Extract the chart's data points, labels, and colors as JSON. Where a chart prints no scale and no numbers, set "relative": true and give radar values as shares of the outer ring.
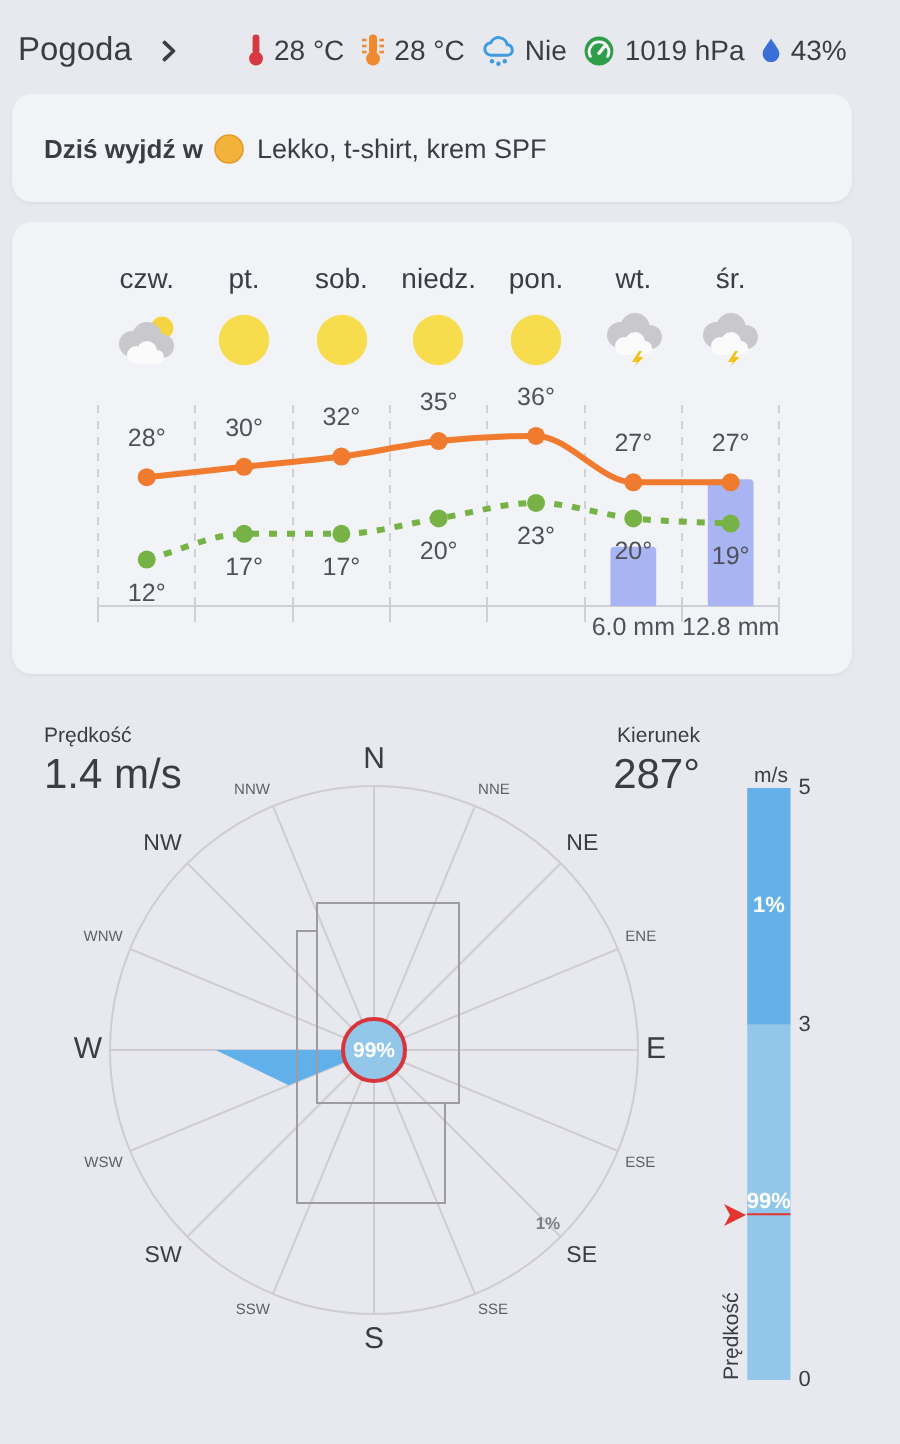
{
  "chart_data": [
    {
      "type": "other",
      "title": "Pogoda",
      "annotations": [
        "28 °C",
        "28 °C",
        "Nie",
        "1019 hPa",
        "43%"
      ]
    },
    {
      "type": "other",
      "title": "Dziś wyjdź w",
      "annotations": [
        "Lekko, t-shirt, krem SPF"
      ]
    },
    {
      "type": "line",
      "categories": [
        "czw.",
        "pt.",
        "sob.",
        "niedz.",
        "pon.",
        "wt.",
        "śr."
      ],
      "series": [
        {
          "color": "#f07a2e",
          "values": [
            28,
            30,
            32,
            35,
            36,
            27,
            27
          ],
          "value_labels": [
            "28°",
            "30°",
            "32°",
            "35°",
            "36°",
            "27°",
            "27°"
          ],
          "line_style": "solid"
        },
        {
          "color": "#76b245",
          "values": [
            12,
            17,
            17,
            20,
            23,
            20,
            19
          ],
          "value_labels": [
            "12°",
            "17°",
            "17°",
            "20°",
            "23°",
            "20°",
            "19°"
          ],
          "line_style": "dotted"
        },
        {
          "type": "bar",
          "axis": "y2",
          "color": "#a9b5f3",
          "values": [
            null,
            null,
            null,
            null,
            null,
            6.0,
            12.8
          ],
          "value_labels": [
            null,
            null,
            null,
            null,
            null,
            "6.0 mm",
            "12.8 mm"
          ]
        }
      ],
      "marker": "circle",
      "grid": "x",
      "tick_labels": "x"
    },
    {
      "type": "radar",
      "relative": true,
      "categories": [
        "N",
        "NNE",
        "NE",
        "ENE",
        "E",
        "ESE",
        "SE",
        "SSE",
        "S",
        "SSW",
        "SW",
        "WSW",
        "W",
        "WNW",
        "NW",
        "NNW"
      ],
      "series": [
        {
          "color": "#62b0ea",
          "values": [
            0,
            0,
            0,
            0,
            0,
            0,
            0,
            0,
            0,
            0,
            0,
            0.35,
            0.6,
            0,
            0,
            0
          ]
        }
      ],
      "grid": true,
      "annotations": [
        "Prędkość",
        "1.4 m/s",
        "Kierunek",
        "287°",
        "99%",
        "1%"
      ]
    },
    {
      "type": "bar",
      "stacked": true,
      "title": "m/s",
      "ylabel": "Prędkość",
      "categories": [
        null
      ],
      "series": [
        {
          "color": "#93c7e9",
          "values": [
            3
          ]
        },
        {
          "color": "#64b1ea",
          "values": [
            2
          ]
        }
      ],
      "ylim": [
        0,
        5
      ],
      "yticks": [
        0,
        3,
        5
      ],
      "ref_lines": [
        {
          "axis": "y",
          "value": 1.4,
          "color": "#e3342f"
        }
      ],
      "annotations": [
        "99%",
        "1%"
      ],
      "tick_labels": "y"
    }
  ]
}
